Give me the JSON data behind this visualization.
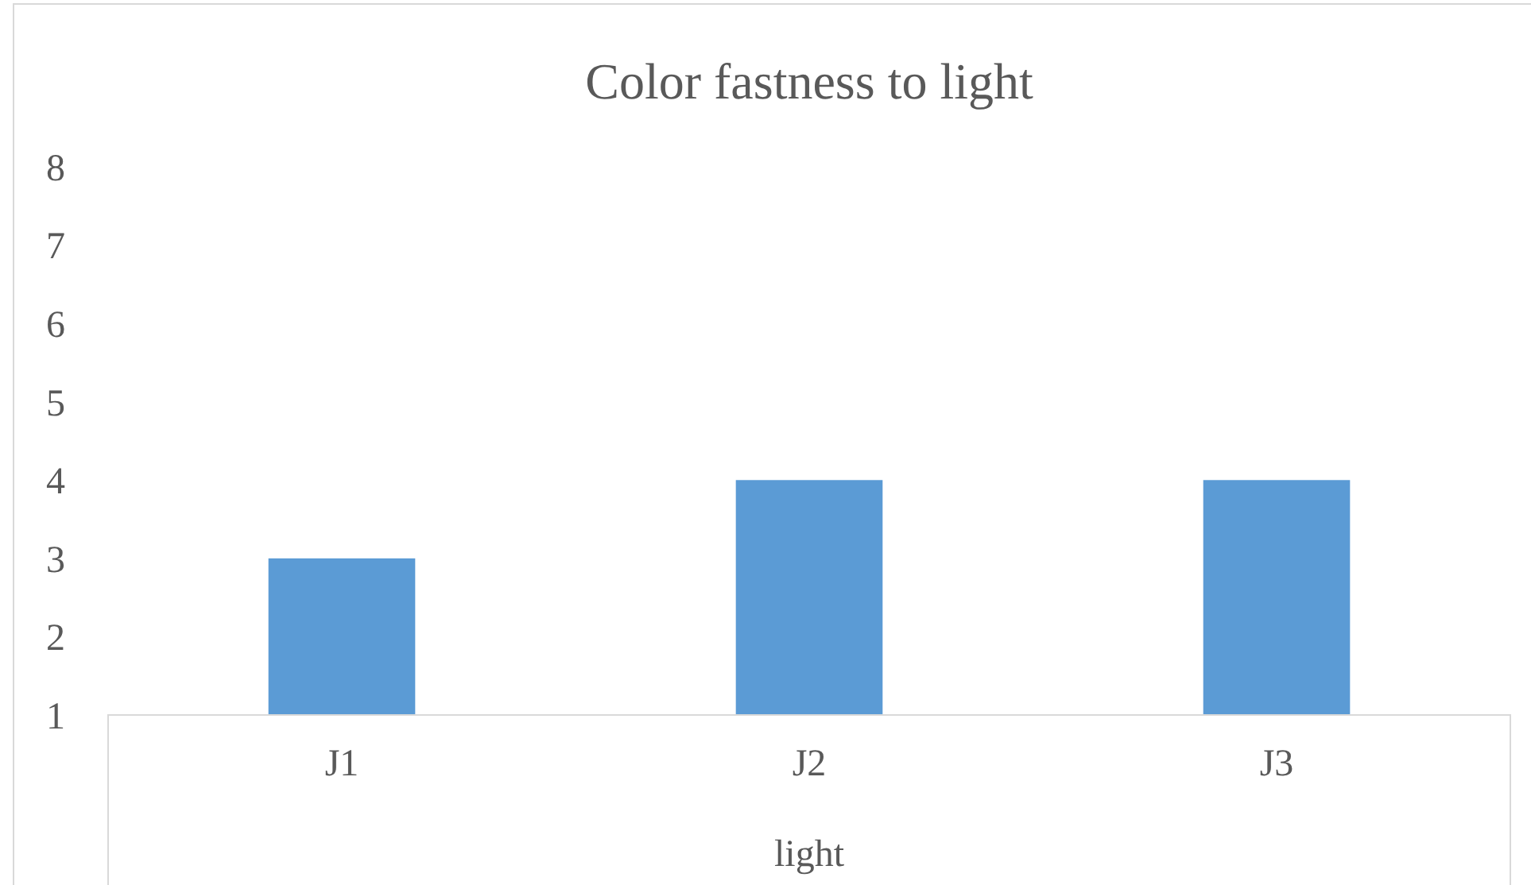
{
  "chart_data": {
    "type": "bar",
    "title": "Color fastness to light",
    "xlabel": "light",
    "categories": [
      "J1",
      "J2",
      "J3"
    ],
    "values": [
      3,
      4,
      4
    ],
    "color": "#5b9bd5",
    "ylim": [
      1,
      8
    ],
    "yticks": [
      1,
      2,
      3,
      4,
      5,
      6,
      7,
      8
    ],
    "grid": false
  }
}
